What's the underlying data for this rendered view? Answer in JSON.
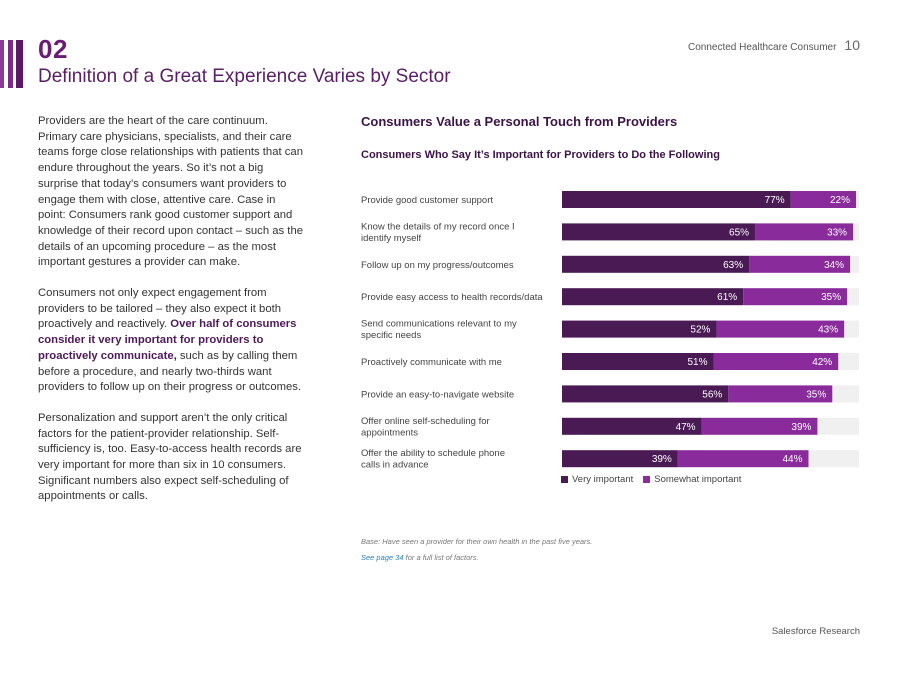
{
  "header": {
    "section_number": "02",
    "title": "Definition of a Great Experience Varies by Sector",
    "running_head": "Connected Healthcare Consumer",
    "page_number": "10"
  },
  "body": {
    "p1": "Providers are the heart of the care continuum. Primary care physicians, specialists, and their care teams forge close relationships with patients that can endure throughout the years. So it’s not a big surprise that today’s consumers want providers to engage them with close, attentive care. Case in point: Consumers rank good customer support and knowledge of their record upon contact – such as the details of an upcoming procedure – as the most important gestures a provider can make.",
    "p2_a": "Consumers not only expect engagement from providers to be tailored – they also expect it both proactively and reactively. ",
    "p2_bold": "Over half of consumers consider it very important for providers to proactively communicate,",
    "p2_b": " such as by calling them before a procedure, and nearly two-thirds want providers to follow up on their progress or outcomes.",
    "p3": "Personalization and support aren’t the only critical factors for the patient-provider relationship. Self-sufficiency is, too. Easy-to-access health records are very important for more than six in 10 consumers. Significant numbers also expect self-scheduling of appointments or calls."
  },
  "chart_data": {
    "type": "bar",
    "orientation": "horizontal",
    "stacked": true,
    "title": "Consumers Value a Personal Touch from Providers",
    "subtitle": "Consumers Who Say It’s Important for Providers to Do the Following",
    "categories": [
      "Provide good customer support",
      "Know the details of my record once I identify myself",
      "Follow up on my progress/outcomes",
      "Provide easy access to health records/data",
      "Send communications relevant to my specific needs",
      "Proactively communicate with me",
      "Provide an easy-to-navigate website",
      "Offer online self-scheduling for appointments",
      "Offer the ability to schedule phone calls in advance"
    ],
    "series": [
      {
        "name": "Very important",
        "color": "#4a1a55",
        "values": [
          77,
          65,
          63,
          61,
          52,
          51,
          56,
          47,
          39
        ]
      },
      {
        "name": "Somewhat important",
        "color": "#8a2b9c",
        "values": [
          22,
          33,
          34,
          35,
          43,
          42,
          35,
          39,
          44
        ]
      }
    ],
    "value_suffix": "%",
    "xlim": [
      0,
      100
    ],
    "track_color": "#f0f0f0"
  },
  "footnotes": {
    "base": "Base: Have seen a provider for their own health in the past five years.",
    "link": "See page 34",
    "rest": " for a full list of factors."
  },
  "footer": {
    "brand": "Salesforce Research"
  }
}
